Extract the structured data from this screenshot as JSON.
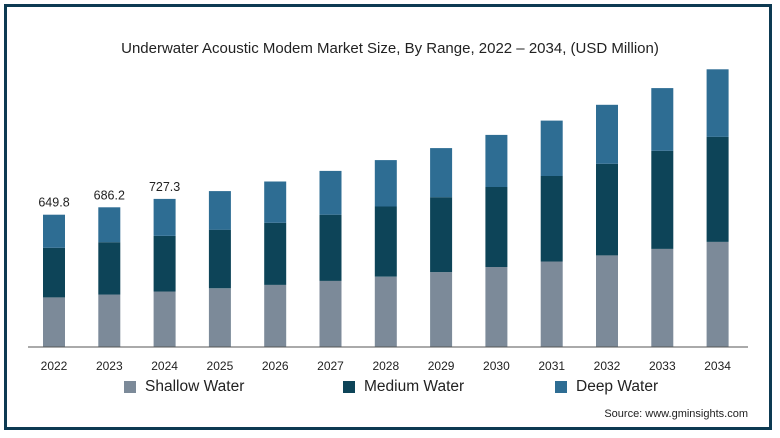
{
  "chart_data": {
    "type": "bar",
    "stacked": true,
    "title": "Underwater Acoustic Modem Market Size, By Range, 2022 – 2034, (USD Million)",
    "xlabel": "",
    "ylabel": "",
    "categories": [
      "2022",
      "2023",
      "2024",
      "2025",
      "2026",
      "2027",
      "2028",
      "2029",
      "2030",
      "2031",
      "2032",
      "2033",
      "2034"
    ],
    "series": [
      {
        "name": "Shallow Water",
        "color": "#7c8a99",
        "values": [
          243.7,
          257.3,
          272.7,
          288,
          305,
          325,
          345,
          368,
          393,
          420,
          450,
          482,
          516
        ]
      },
      {
        "name": "Medium Water",
        "color": "#0d4458",
        "values": [
          243.7,
          257.3,
          272.7,
          288,
          305,
          325,
          345,
          368,
          393,
          420,
          450,
          482,
          516
        ]
      },
      {
        "name": "Deep Water",
        "color": "#2e6d93",
        "values": [
          162.4,
          171.6,
          181.9,
          190,
          203,
          215,
          228,
          241,
          256,
          272,
          290,
          308,
          332
        ]
      }
    ],
    "data_labels": [
      "649.8",
      "686.2",
      "727.3",
      "",
      "",
      "",
      "",
      "",
      "",
      "",
      "",
      "",
      ""
    ],
    "ylim": [
      0,
      1400
    ],
    "grid": false,
    "legend_position": "bottom"
  },
  "source_text": "Source: www.gminsights.com"
}
